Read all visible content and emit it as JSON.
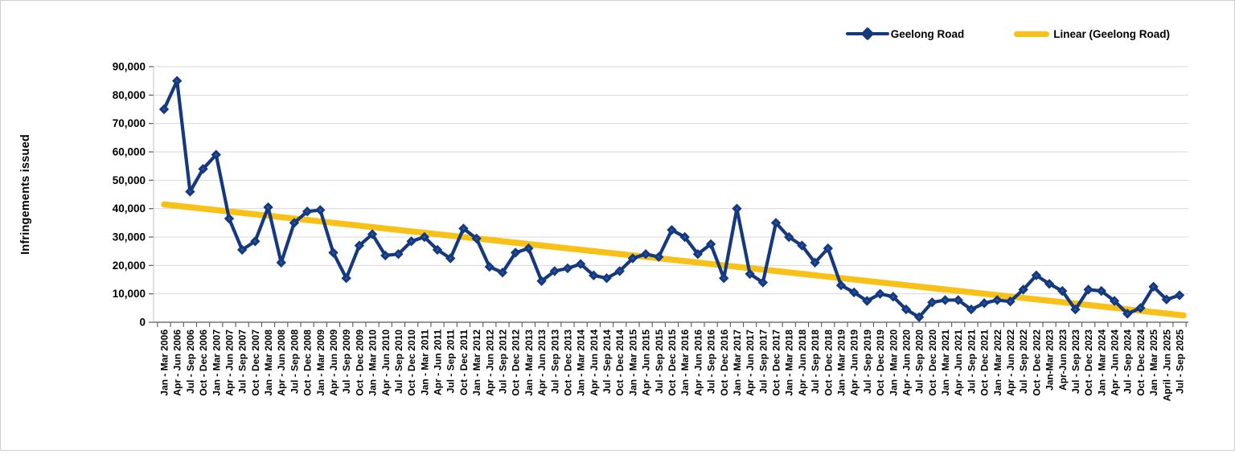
{
  "figure": {
    "legend_items": [
      {
        "label": "Geelong Road",
        "marker": "diamond-line-icon",
        "color": "#15397F"
      },
      {
        "label": "Linear (Geelong Road)",
        "marker": "trend-line-icon",
        "color": "#F7C117"
      }
    ]
  },
  "chart_data": {
    "type": "line",
    "title": "",
    "xlabel": "",
    "ylabel": "Infringements issued",
    "ylim": [
      0,
      90000
    ],
    "ytick_interval": 10000,
    "ytick_labels": [
      "0",
      "10,000",
      "20,000",
      "30,000",
      "40,000",
      "50,000",
      "60,000",
      "70,000",
      "80,000",
      "90,000"
    ],
    "grid": true,
    "legend_position": "top-right",
    "categories": [
      "Jan - Mar 2006",
      "Apr - Jun 2006",
      "Jul - Sep 2006",
      "Oct - Dec 2006",
      "Jan - Mar 2007",
      "Apr - Jun 2007",
      "Jul - Sep 2007",
      "Oct - Dec 2007",
      "Jan - Mar 2008",
      "Apr - Jun 2008",
      "Jul - Sep 2008",
      "Oct - Dec 2008",
      "Jan - Mar 2009",
      "Apr - Jun 2009",
      "Jul - Sep 2009",
      "Oct - Dec 2009",
      "Jan - Mar 2010",
      "Apr - Jun 2010",
      "Jul - Sep 2010",
      "Oct - Dec 2010",
      "Jan - Mar 2011",
      "Apr - Jun 2011",
      "Jul - Sep 2011",
      "Oct - Dec 2011",
      "Jan - Mar 2012",
      "Apr - Jun 2012",
      "Jul - Sep 2012",
      "Oct - Dec 2012",
      "Jan - Mar 2013",
      "Apr - Jun 2013",
      "Jul - Sep 2013",
      "Oct - Dec 2013",
      "Jan - Mar 2014",
      "Apr - Jun 2014",
      "Jul - Sep 2014",
      "Oct - Dec 2014",
      "Jan - Mar 2015",
      "Apr - Jun 2015",
      "Jul - Sep 2015",
      "Oct - Dec 2015",
      "Jan - Mar 2016",
      "Apr - Jun 2016",
      "Jul - Sep 2016",
      "Oct - Dec 2016",
      "Jan - Mar 2017",
      "Apr - Jun 2017",
      "Jul - Sep 2017",
      "Oct - Dec 2017",
      "Jan - Mar 2018",
      "Apr - Jun 2018",
      "Jul - Sep 2018",
      "Oct - Dec 2018",
      "Jan - Mar 2019",
      "Apr - Jun 2019",
      "Jul - Sep 2019",
      "Oct - Dec 2019",
      "Jan - Mar 2020",
      "Apr - Jun 2020",
      "Jul - Sep 2020",
      "Oct - Dec 2020",
      "Jan - Mar 2021",
      "Apr - Jun 2021",
      "Jul - Sep 2021",
      "Oct - Dec 2021",
      "Jan - Mar 2022",
      "Apr - Jun 2022",
      "Jul - Sep 2022",
      "Oct - Dec 2022",
      "Jan-Mar 2023",
      "Apr-Jun 2023",
      "Jul - Sep 2023",
      "Oct - Dec 2023",
      "Jan - Mar 2024",
      "Apr - Jun 2024",
      "Jul - Sep 2024",
      "Oct - Dec 2024",
      "Jan - Mar 2025",
      "April - Jun 2025",
      "Jul - Sep 2025"
    ],
    "series": [
      {
        "name": "Geelong Road",
        "color": "#15397F",
        "marker": "diamond",
        "values": [
          75000,
          85000,
          46000,
          54000,
          59000,
          36500,
          25500,
          28500,
          40500,
          21000,
          35000,
          39000,
          39500,
          24500,
          15500,
          27000,
          31000,
          23500,
          24000,
          28500,
          30000,
          25500,
          22500,
          33000,
          29500,
          19500,
          17500,
          24500,
          26000,
          14500,
          18000,
          19000,
          20500,
          16500,
          15500,
          18000,
          22500,
          24000,
          23000,
          32500,
          30000,
          24000,
          27500,
          15500,
          40000,
          17000,
          14000,
          35000,
          30000,
          27000,
          21000,
          26000,
          13000,
          10500,
          7500,
          10000,
          9000,
          4500,
          1800,
          7000,
          7800,
          7800,
          4500,
          6700,
          7800,
          7300,
          11500,
          16500,
          13500,
          11000,
          4500,
          11500,
          11000,
          7500,
          3000,
          5000,
          12500,
          8000,
          9500
        ]
      },
      {
        "name": "Linear (Geelong Road)",
        "type": "trend",
        "color": "#F7C117",
        "trend_start_value": 41500,
        "trend_end_value": 2400
      }
    ]
  }
}
